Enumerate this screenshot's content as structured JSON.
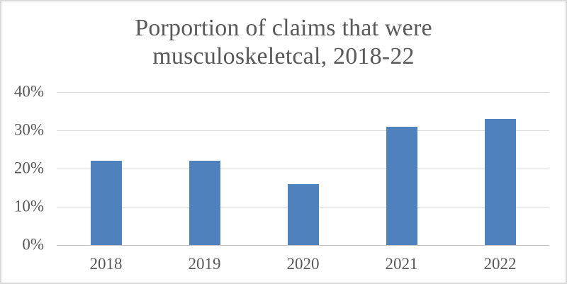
{
  "chart_data": {
    "type": "bar",
    "title": "Porportion of claims that were musculoskeletcal, 2018-22",
    "title_lines": [
      "Porportion of claims that were",
      "musculoskeletcal, 2018-22"
    ],
    "categories": [
      "2018",
      "2019",
      "2020",
      "2021",
      "2022"
    ],
    "values": [
      22,
      22,
      16,
      31,
      33
    ],
    "value_unit": "%",
    "xlabel": "",
    "ylabel": "",
    "ylim": [
      0,
      40
    ],
    "yticks": [
      0,
      10,
      20,
      30,
      40
    ],
    "ytick_labels": [
      "0%",
      "10%",
      "20%",
      "30%",
      "40%"
    ],
    "grid": true,
    "legend": "none",
    "colors": {
      "bar_fill": "#4F81BD",
      "gridline": "#D9D9D9",
      "axis_line": "#C3C3C3",
      "text": "#595959",
      "chart_border": "#D9D9D9",
      "background": "#FFFFFF"
    }
  }
}
